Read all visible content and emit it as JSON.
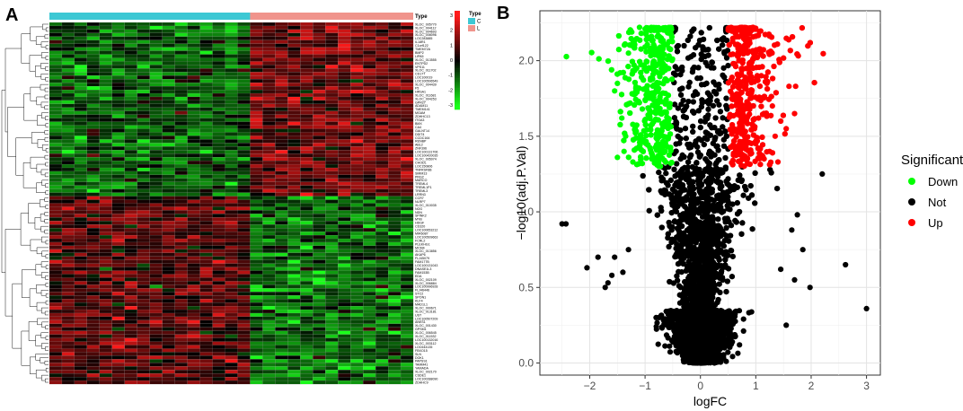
{
  "panels": {
    "a_label": "A",
    "b_label": "B"
  },
  "heatmap": {
    "annotation_title": "Type",
    "group_legend_title": "Type",
    "groups": [
      {
        "code": "C",
        "color": "#3dc8d4",
        "samples": 16
      },
      {
        "code": "L",
        "color": "#f0948c",
        "samples": 13
      }
    ],
    "color_key": {
      "ticks": [
        "3",
        "2",
        "1",
        "0",
        "-1",
        "-2",
        "-3"
      ],
      "high_color": "#ff1a1a",
      "mid_color": "#000000",
      "low_color": "#1aff1a"
    },
    "genes": [
      "XLOC_005770",
      "XLOC_004112",
      "XLOC_004693",
      "XLOC_008096",
      "LOC283885",
      "IL18R1",
      "C1orf122",
      "TMEM72A",
      "BMP2",
      "LIPA5",
      "XLOC_013555",
      "ENTPD2",
      "VPS11",
      "XLOC_011702",
      "CD177",
      "LOC100019",
      "LOC100506549",
      "XLOC_004439",
      "F5",
      "HRSA1",
      "XLOC_011681",
      "XLOC_004253",
      "GPR27",
      "ADAM11",
      "TMEM141",
      "MGAM",
      "ZDHHC13",
      "ITGA3",
      "BMX",
      "CA4",
      "GALNT14",
      "DDIT4",
      "CCDC164",
      "RENBP",
      "ABL2",
      "ZNF396",
      "LOC100131706",
      "LOC100420035",
      "XLOC_005074",
      "CHODL",
      "LOC150806",
      "TNFRSF6B",
      "SMIM13",
      "PRG2",
      "MARCO",
      "TREML4",
      "TREML1P1",
      "TREML3",
      "LRRN3",
      "CCR7",
      "NLRP7",
      "XLOC_010035",
      "NOG",
      "NDN",
      "SPINK2",
      "MYB",
      "HDGF",
      "CD320",
      "LOC100653212",
      "MIR6087",
      "LOC100509663",
      "FCRL2",
      "PLEKHG1",
      "MCM4",
      "XLOC_013856",
      "AKAP6",
      "FLJ45079",
      "FAM177B",
      "LOC100131043",
      "DNASE1L3",
      "FAM153B",
      "EDA",
      "XLOC_002109",
      "XLOC_006884",
      "LOC100996928",
      "FLJ46446",
      "STC2",
      "SPON1",
      "KLF4",
      "MAD1L1",
      "XLOC_000671",
      "XLOC_013181",
      "UST",
      "LOC100507209",
      "ANKS1",
      "XLOC_001430",
      "GPSM1",
      "XLOC_006545",
      "XLOC_011532",
      "LOC100132016",
      "XLOC_003112",
      "LOC644135",
      "FBXO15",
      "SLN",
      "DOK1",
      "PAPSS1",
      "TAMM41",
      "YAMADA",
      "XLOC_002170",
      "CSDE1",
      "LOC100288090",
      "ZDHHC9"
    ]
  },
  "chart_data": {
    "type": "scatter",
    "title": "",
    "xlabel": "logFC",
    "ylabel": "-log10(adj.P.Val)",
    "xlim": [
      -2.9,
      3.25
    ],
    "ylim": [
      -0.08,
      2.33
    ],
    "xticks": [
      -2,
      -1,
      0,
      1,
      2,
      3
    ],
    "yticks": [
      0.0,
      0.5,
      1.0,
      1.5,
      2.0
    ],
    "grid": true,
    "legend": {
      "title": "Significant",
      "position": "right",
      "entries": [
        {
          "label": "Down",
          "color": "#00ff00"
        },
        {
          "label": "Not",
          "color": "#000000"
        },
        {
          "label": "Up",
          "color": "#ff0000"
        }
      ]
    },
    "thresholds": {
      "abs_logFC": 0.5,
      "neg_log10_padj": 1.3
    },
    "series": [
      {
        "name": "Down",
        "color": "#00ff00",
        "points": [
          [
            -1.55,
            1.8
          ],
          [
            -1.5,
            1.85
          ],
          [
            -1.45,
            1.92
          ],
          [
            -1.3,
            2.05
          ],
          [
            -1.25,
            2.1
          ],
          [
            -1.2,
            1.97
          ],
          [
            -1.1,
            2.22
          ],
          [
            -1.0,
            2.21
          ],
          [
            -1.42,
            1.62
          ],
          [
            -1.38,
            1.4
          ],
          [
            -1.35,
            1.5
          ],
          [
            -1.15,
            1.95
          ],
          [
            -0.95,
            2.15
          ],
          [
            -0.9,
            2.2
          ],
          [
            -1.27,
            1.72
          ],
          [
            -1.18,
            1.55
          ],
          [
            -1.05,
            1.68
          ],
          [
            -0.98,
            1.45
          ],
          [
            -1.5,
            1.36
          ],
          [
            -1.22,
            1.33
          ]
        ]
      },
      {
        "name": "Not",
        "color": "#000000",
        "points": [
          [
            -2.5,
            0.92
          ],
          [
            -2.43,
            0.92
          ],
          [
            -2.05,
            0.63
          ],
          [
            -1.72,
            0.5
          ],
          [
            -1.67,
            0.53
          ],
          [
            -1.6,
            0.58
          ],
          [
            3.0,
            0.36
          ],
          [
            2.62,
            0.65
          ],
          [
            1.98,
            0.5
          ],
          [
            2.2,
            1.25
          ],
          [
            1.85,
            0.75
          ],
          [
            1.75,
            0.98
          ],
          [
            1.65,
            0.88
          ],
          [
            1.55,
            0.25
          ],
          [
            1.45,
            0.62
          ],
          [
            -1.55,
            0.7
          ],
          [
            -1.4,
            0.6
          ],
          [
            -1.3,
            0.75
          ],
          [
            -1.85,
            0.7
          ],
          [
            1.7,
            0.55
          ]
        ]
      },
      {
        "name": "Up",
        "color": "#ff0000",
        "points": [
          [
            1.6,
            1.83
          ],
          [
            1.72,
            1.83
          ],
          [
            1.7,
            1.65
          ],
          [
            1.55,
            1.55
          ],
          [
            1.45,
            1.6
          ],
          [
            1.35,
            1.5
          ],
          [
            1.2,
            1.85
          ],
          [
            1.1,
            1.9
          ],
          [
            0.95,
            2.22
          ],
          [
            0.8,
            2.2
          ],
          [
            0.75,
            2.22
          ],
          [
            1.25,
            1.4
          ],
          [
            1.15,
            1.35
          ],
          [
            1.05,
            1.62
          ],
          [
            0.9,
            1.75
          ],
          [
            0.85,
            2.05
          ],
          [
            1.3,
            1.7
          ],
          [
            1.0,
            1.45
          ],
          [
            0.7,
            2.1
          ],
          [
            1.4,
            1.33
          ]
        ]
      }
    ]
  }
}
